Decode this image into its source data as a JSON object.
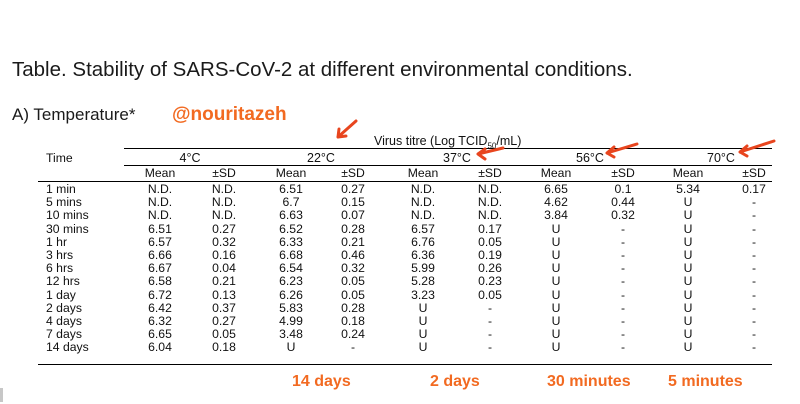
{
  "title": "Table. Stability of SARS-CoV-2 at different environmental conditions.",
  "section": "A) Temperature*",
  "handle": "@nouritazeh",
  "virus_titre": {
    "prefix": "Virus titre (Log TCID",
    "sub": "50",
    "suffix": "/mL)"
  },
  "time_header": "Time",
  "temperatures": [
    "4°C",
    "22°C",
    "37°C",
    "56°C",
    "70°C"
  ],
  "subheaders": [
    "Mean",
    "±SD"
  ],
  "rows": [
    {
      "time": "1 min",
      "values": [
        "N.D.",
        "N.D.",
        "6.51",
        "0.27",
        "N.D.",
        "N.D.",
        "6.65",
        "0.1",
        "5.34",
        "0.17"
      ]
    },
    {
      "time": "5 mins",
      "values": [
        "N.D.",
        "N.D.",
        "6.7",
        "0.15",
        "N.D.",
        "N.D.",
        "4.62",
        "0.44",
        "U",
        "-"
      ]
    },
    {
      "time": "10 mins",
      "values": [
        "N.D.",
        "N.D.",
        "6.63",
        "0.07",
        "N.D.",
        "N.D.",
        "3.84",
        "0.32",
        "U",
        "-"
      ]
    },
    {
      "time": "30 mins",
      "values": [
        "6.51",
        "0.27",
        "6.52",
        "0.28",
        "6.57",
        "0.17",
        "U",
        "-",
        "U",
        "-"
      ]
    },
    {
      "time": "1 hr",
      "values": [
        "6.57",
        "0.32",
        "6.33",
        "0.21",
        "6.76",
        "0.05",
        "U",
        "-",
        "U",
        "-"
      ]
    },
    {
      "time": "3 hrs",
      "values": [
        "6.66",
        "0.16",
        "6.68",
        "0.46",
        "6.36",
        "0.19",
        "U",
        "-",
        "U",
        "-"
      ]
    },
    {
      "time": "6 hrs",
      "values": [
        "6.67",
        "0.04",
        "6.54",
        "0.32",
        "5.99",
        "0.26",
        "U",
        "-",
        "U",
        "-"
      ]
    },
    {
      "time": "12 hrs",
      "values": [
        "6.58",
        "0.21",
        "6.23",
        "0.05",
        "5.28",
        "0.23",
        "U",
        "-",
        "U",
        "-"
      ]
    },
    {
      "time": "1 day",
      "values": [
        "6.72",
        "0.13",
        "6.26",
        "0.05",
        "3.23",
        "0.05",
        "U",
        "-",
        "U",
        "-"
      ]
    },
    {
      "time": "2 days",
      "values": [
        "6.42",
        "0.37",
        "5.83",
        "0.28",
        "U",
        "-",
        "U",
        "-",
        "U",
        "-"
      ]
    },
    {
      "time": "4 days",
      "values": [
        "6.32",
        "0.27",
        "4.99",
        "0.18",
        "U",
        "-",
        "U",
        "-",
        "U",
        "-"
      ]
    },
    {
      "time": "7 days",
      "values": [
        "6.65",
        "0.05",
        "3.48",
        "0.24",
        "U",
        "-",
        "U",
        "-",
        "U",
        "-"
      ]
    },
    {
      "time": "14 days",
      "values": [
        "6.04",
        "0.18",
        "U",
        "-",
        "U",
        "-",
        "U",
        "-",
        "U",
        "-"
      ]
    }
  ],
  "annotations": [
    "14 days",
    "2 days",
    "30 minutes",
    "5  minutes"
  ],
  "accent_color": "#f26a21"
}
